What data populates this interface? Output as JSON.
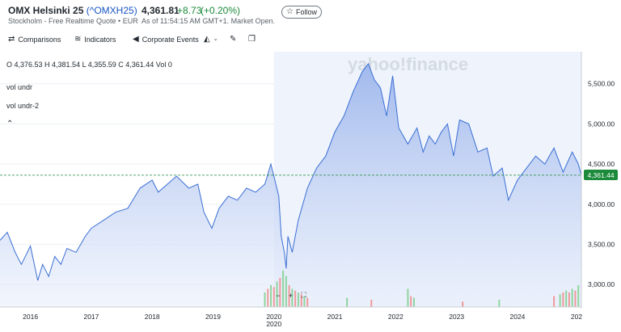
{
  "header": {
    "index_name": "OMX Helsinki 25",
    "symbol": "(^OMXH25)",
    "subtitle": "Stockholm - Free Realtime Quote • EUR",
    "price": "4,361.81",
    "change": "+8.73",
    "change_pct": "(+0.20%)",
    "as_of": "As of 11:54:15 AM GMT+1. Market Open.",
    "follow_label": "Follow"
  },
  "toolbar": {
    "comparisons": "Comparisons",
    "indicators": "Indicators",
    "corporate_events": "Corporate Events"
  },
  "overlay": {
    "ohlc": "O 4,376.53  H 4,381.54  L 4,355.59  C 4,361.44  Vol 0",
    "vol1": "vol undr",
    "vol2": "vol undr-2",
    "watermark": "yahoo!finance",
    "zoom_minus": "−",
    "zoom_plus": "+",
    "last_price_label": "4,361.44"
  },
  "colors": {
    "line": "#3b6fd4",
    "fill_top": "#b7c9f2",
    "vol_up": "#7fcf8f",
    "vol_down": "#f08a8a",
    "last_price": "#1b8a3a"
  },
  "chart_data": {
    "type": "area",
    "title": "",
    "xlabel": "",
    "ylabel": "",
    "ylim": [
      2720,
      5900
    ],
    "x_ticks": [
      "2016",
      "2017",
      "2018",
      "2019",
      "2020",
      "2020",
      "2021",
      "2022",
      "2023",
      "2024",
      "202"
    ],
    "x_tick_pos": [
      2016.0,
      2017.0,
      2018.0,
      2019.0,
      2020.0,
      2020.0,
      2021.0,
      2022.0,
      2023.0,
      2024.0,
      2025.0
    ],
    "y_ticks": [
      3000,
      3500,
      4000,
      4500,
      5000,
      5500
    ],
    "y_tick_labels": [
      "3,000.00",
      "3,500.00",
      "4,000.00",
      "4,500.00",
      "5,000.00",
      "5,500.00"
    ],
    "last_value": 4361.44,
    "x": [
      2015.5,
      2015.62,
      2015.75,
      2015.85,
      2016.0,
      2016.05,
      2016.12,
      2016.2,
      2016.3,
      2016.4,
      2016.5,
      2016.6,
      2016.75,
      2016.9,
      2017.0,
      2017.2,
      2017.4,
      2017.6,
      2017.8,
      2018.0,
      2018.1,
      2018.25,
      2018.4,
      2018.6,
      2018.75,
      2018.85,
      2018.98,
      2019.1,
      2019.25,
      2019.4,
      2019.55,
      2019.7,
      2019.85,
      2019.95,
      2020.08,
      2020.12,
      2020.17,
      2020.2,
      2020.23,
      2020.3,
      2020.4,
      2020.55,
      2020.7,
      2020.85,
      2021.0,
      2021.15,
      2021.3,
      2021.45,
      2021.55,
      2021.65,
      2021.75,
      2021.85,
      2021.95,
      2022.05,
      2022.2,
      2022.35,
      2022.45,
      2022.55,
      2022.65,
      2022.75,
      2022.85,
      2022.95,
      2023.05,
      2023.2,
      2023.35,
      2023.5,
      2023.6,
      2023.75,
      2023.85,
      2024.0,
      2024.15,
      2024.3,
      2024.45,
      2024.6,
      2024.75,
      2024.9,
      2025.0,
      2025.05
    ],
    "values": [
      3550,
      3650,
      3400,
      3250,
      3480,
      3300,
      3050,
      3250,
      3100,
      3350,
      3250,
      3450,
      3400,
      3600,
      3700,
      3800,
      3900,
      3950,
      4200,
      4300,
      4150,
      4250,
      4350,
      4200,
      4250,
      3900,
      3700,
      3950,
      4100,
      4050,
      4200,
      4150,
      4250,
      4500,
      4100,
      3600,
      3400,
      3200,
      3600,
      3400,
      3800,
      4200,
      4450,
      4600,
      4900,
      5100,
      5400,
      5650,
      5750,
      5550,
      5450,
      5100,
      5600,
      4950,
      4750,
      4950,
      4650,
      4850,
      4750,
      4900,
      5000,
      4600,
      5050,
      5000,
      4650,
      4700,
      4350,
      4450,
      4050,
      4300,
      4450,
      4600,
      4500,
      4700,
      4400,
      4650,
      4500,
      4361
    ],
    "volume": {
      "note": "relative bars near bottom",
      "x": [
        2019.85,
        2019.9,
        2019.95,
        2020.0,
        2020.05,
        2020.1,
        2020.15,
        2020.2,
        2020.25,
        2020.3,
        2020.35,
        2020.4,
        2020.45,
        2020.5,
        2020.55,
        2021.2,
        2021.6,
        2022.2,
        2022.25,
        2022.3,
        2023.1,
        2023.7,
        2024.6,
        2024.7,
        2024.75,
        2024.8,
        2024.85,
        2024.9,
        2024.95,
        2025.0
      ],
      "values": [
        0.4,
        0.5,
        0.6,
        0.55,
        0.7,
        0.8,
        1.0,
        0.85,
        0.6,
        0.5,
        0.45,
        0.4,
        0.35,
        0.3,
        0.25,
        0.25,
        0.2,
        0.5,
        0.3,
        0.25,
        0.15,
        0.2,
        0.3,
        0.35,
        0.4,
        0.45,
        0.4,
        0.5,
        0.45,
        0.6
      ],
      "up": [
        1,
        0,
        1,
        0,
        1,
        0,
        1,
        1,
        0,
        1,
        0,
        1,
        0,
        1,
        0,
        1,
        0,
        1,
        0,
        1,
        0,
        1,
        0,
        1,
        0,
        1,
        0,
        1,
        0,
        1
      ]
    }
  }
}
